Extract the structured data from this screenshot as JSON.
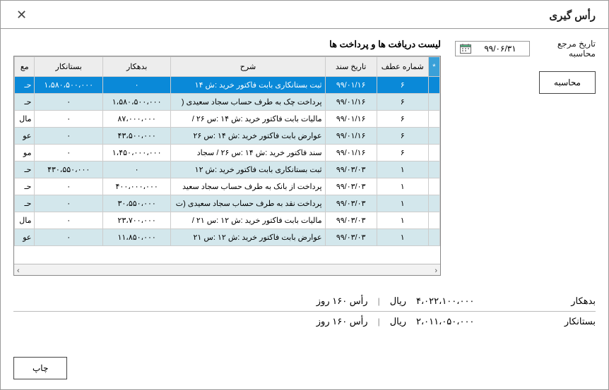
{
  "window": {
    "title": "رأس گیری"
  },
  "date": {
    "label": "تاریخ مرجع محاسبه",
    "value": "۹۹/۰۶/۳۱"
  },
  "buttons": {
    "calculate": "محاسبه",
    "print": "چاپ"
  },
  "list": {
    "title": "لیست دریافت ها و پرداخت ها"
  },
  "table": {
    "columns": [
      "*",
      "شماره عطف",
      "تاریخ سند",
      "شرح",
      "بدهکار",
      "بستانکار",
      "مع"
    ],
    "rows": [
      {
        "cls": "sel",
        "atf": "۶",
        "date": "۹۹/۰۱/۱۶",
        "desc": "ثبت بستانکاری  بابت فاکتور خرید :ش ۱۴",
        "deb": "۰",
        "cred": "۱،۵۸۰،۵۰۰،۰۰۰",
        "mo": "حـ"
      },
      {
        "cls": "alt",
        "atf": "۶",
        "date": "۹۹/۰۱/۱۶",
        "desc": "پرداخت چک به طرف حساب سجاد سعیدی (",
        "deb": "۱،۵۸۰،۵۰۰،۰۰۰",
        "cred": "۰",
        "mo": "حـ"
      },
      {
        "cls": "norm",
        "atf": "۶",
        "date": "۹۹/۰۱/۱۶",
        "desc": "مالیات  بابت فاکتور خرید :ش ۱۴ :س ۲۶ /",
        "deb": "۸۷،۰۰۰،۰۰۰",
        "cred": "۰",
        "mo": "مال"
      },
      {
        "cls": "alt",
        "atf": "۶",
        "date": "۹۹/۰۱/۱۶",
        "desc": "عوارض  بابت فاکتور خرید :ش ۱۴ :س ۲۶",
        "deb": "۴۳،۵۰۰،۰۰۰",
        "cred": "۰",
        "mo": "عو"
      },
      {
        "cls": "norm",
        "atf": "۶",
        "date": "۹۹/۰۱/۱۶",
        "desc": "سند  فاکتور خرید :ش ۱۴ :س ۲۶ / سجاد",
        "deb": "۱،۴۵۰،۰۰۰،۰۰۰",
        "cred": "۰",
        "mo": "مو"
      },
      {
        "cls": "alt",
        "atf": "۱",
        "date": "۹۹/۰۳/۰۳",
        "desc": "ثبت بستانکاری  بابت فاکتور خرید :ش ۱۲",
        "deb": "۰",
        "cred": "۴۳۰،۵۵۰،۰۰۰",
        "mo": "حـ"
      },
      {
        "cls": "norm",
        "atf": "۱",
        "date": "۹۹/۰۳/۰۳",
        "desc": "پرداخت از بانک به طرف حساب سجاد سعید",
        "deb": "۴۰۰،۰۰۰،۰۰۰",
        "cred": "۰",
        "mo": "حـ"
      },
      {
        "cls": "alt",
        "atf": "۱",
        "date": "۹۹/۰۳/۰۳",
        "desc": "پرداخت نقد به طرف حساب سجاد سعیدی (ت",
        "deb": "۳۰،۵۵۰،۰۰۰",
        "cred": "۰",
        "mo": "حـ"
      },
      {
        "cls": "norm",
        "atf": "۱",
        "date": "۹۹/۰۳/۰۳",
        "desc": "مالیات  بابت فاکتور خرید :ش ۱۲ :س ۲۱ /",
        "deb": "۲۳،۷۰۰،۰۰۰",
        "cred": "۰",
        "mo": "مال"
      },
      {
        "cls": "alt",
        "atf": "۱",
        "date": "۹۹/۰۳/۰۳",
        "desc": "عوارض  بابت فاکتور خرید :ش ۱۲ :س ۲۱",
        "deb": "۱۱،۸۵۰،۰۰۰",
        "cred": "۰",
        "mo": "عو"
      }
    ]
  },
  "summary": {
    "debtor_label": "بدهکار",
    "debtor_val": "۴،۰۲۲،۱۰۰،۰۰۰",
    "unit": "ریال",
    "debtor_ras": "رأس ۱۶۰ روز",
    "creditor_label": "بستانکار",
    "creditor_val": "۲،۰۱۱،۰۵۰،۰۰۰",
    "creditor_ras": "رأس ۱۶۰ روز"
  }
}
